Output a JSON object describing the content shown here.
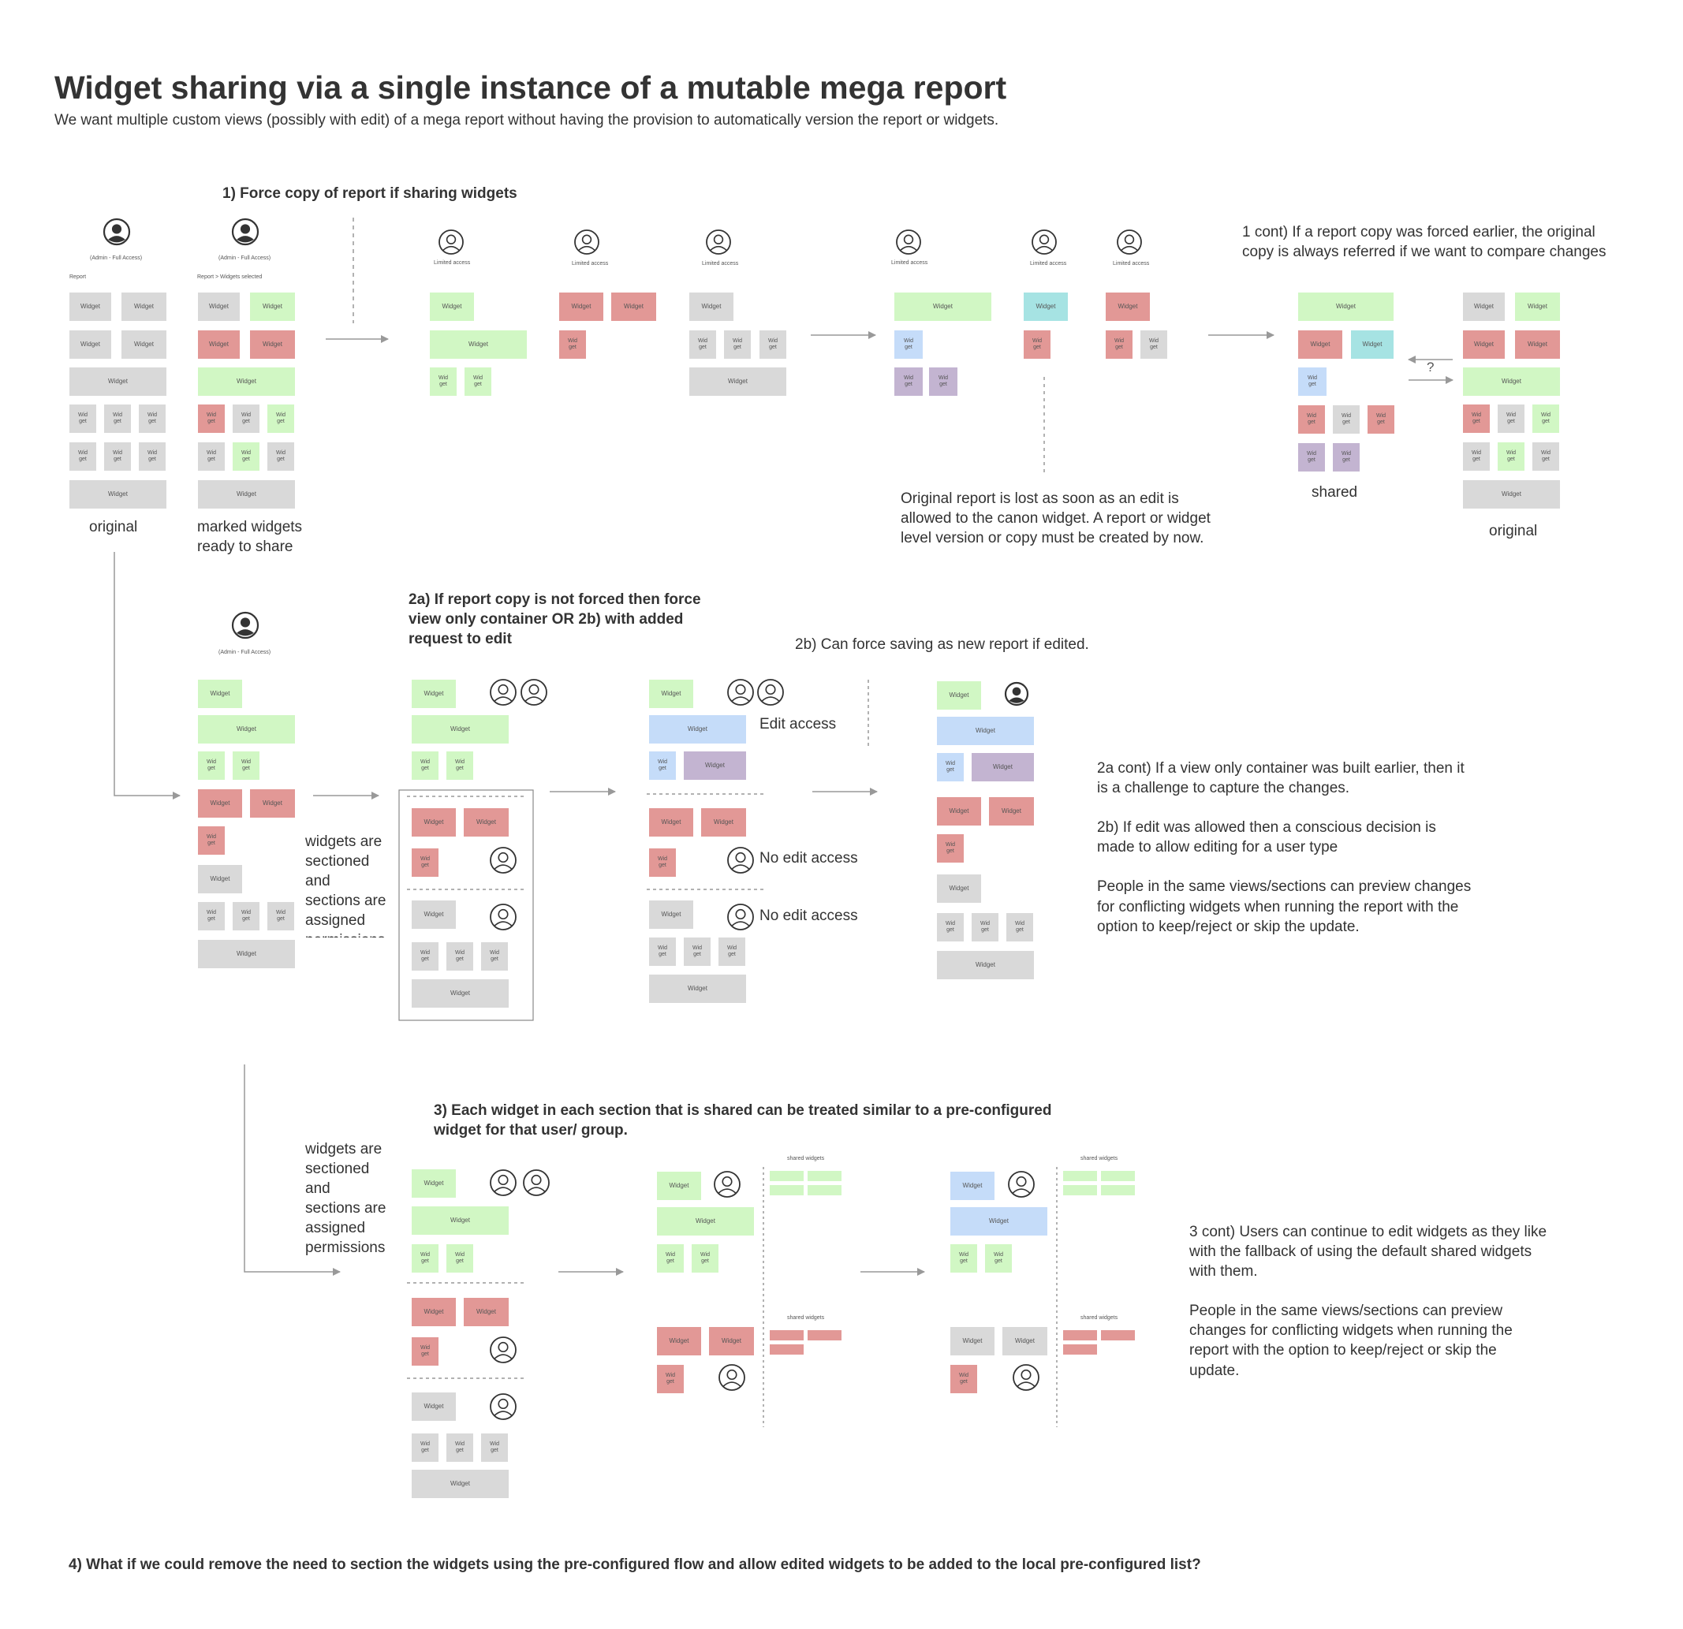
{
  "title": "Widget sharing via a single instance of a mutable mega report",
  "subtitle": "We want multiple custom views (possibly with edit)  of a mega report without having the provision to automatically version the report or widgets.",
  "colors": {
    "gray": "#d9d9d9",
    "green": "#d1f7c4",
    "red": "#e29896",
    "blue": "#c5dcf9",
    "purple": "#c3b4d1",
    "teal": "#a6e3e3",
    "line": "#999999",
    "text": "#333333"
  },
  "labels": {
    "widget": "Widget",
    "widget_small": "Wid\nget",
    "admin_full": "(Admin - Full Access)",
    "limited": "Limited  access",
    "limited_b": "Limited access",
    "report": "Report",
    "report_selected": "Report > Widgets selected",
    "shared_widgets": "shared widgets",
    "question": "?"
  },
  "section1": {
    "heading": "1) Force copy of report if sharing widgets",
    "original_label": "original",
    "marked_label": "marked widgets\nready to share",
    "lost_note": "Original report is lost as soon as an edit is\nallowed to the canon widget. A report or widget\nlevel version or copy must be created by now.",
    "cont_note": "1 cont) If a report copy was forced earlier, the original\ncopy is always referred if we want to compare changes",
    "shared_label": "shared",
    "original_label_right": "original"
  },
  "section2": {
    "heading": "2a) If report copy is not forced then force\nview only container OR 2b) with added\nrequest to edit",
    "force_save": "2b) Can force saving as new report if edited.",
    "sectioned_note": "widgets are\nsectioned\nand\nsections are\nassigned\npermissions",
    "edit_access": "Edit access",
    "no_edit_1": "No edit access",
    "no_edit_2": "No edit access",
    "cont_note": "2a cont) If a view only container was built earlier, then it\nis a challenge to capture the changes.\n\n2b) If edit was allowed then a conscious decision is\nmade to allow editing for a user type\n\nPeople in the same views/sections can preview changes\nfor conflicting widgets when running the report with the\noption to keep/reject or skip the update."
  },
  "section3": {
    "heading": "3) Each widget in each section that is shared can be treated similar to a pre-configured\nwidget for that user/ group.",
    "sectioned_note": "widgets are\nsectioned\nand\nsections are\nassigned\npermissions",
    "cont_note": "3 cont) Users can continue to edit widgets as they like\nwith the fallback of using the default shared widgets\nwith them.\n\nPeople in the same views/sections can preview\nchanges for conflicting widgets when running the\nreport with the option to keep/reject or skip the\nupdate."
  },
  "section4": {
    "heading": "4) What if we could remove the need to section the widgets using the pre-configured flow and allow edited widgets to be added to the local pre-configured list?"
  }
}
